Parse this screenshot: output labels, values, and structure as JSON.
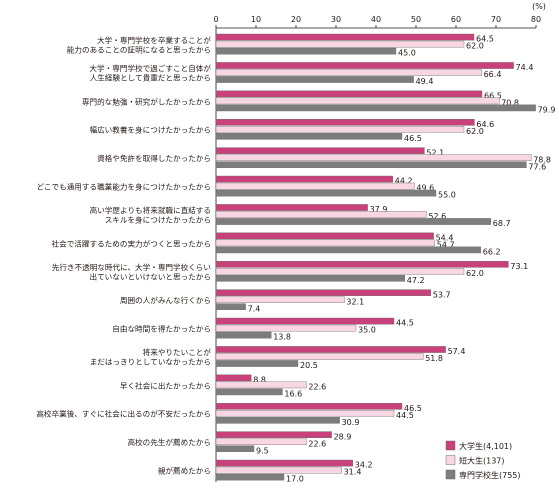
{
  "chart_data": {
    "type": "bar",
    "orientation": "horizontal",
    "unit_label": "(%)",
    "xlim": [
      0,
      80
    ],
    "xticks": [
      0,
      10,
      20,
      30,
      40,
      50,
      60,
      70,
      80
    ],
    "grid": false,
    "legend_position": "bottom-right",
    "categories": [
      [
        "大学・専門学校を卒業することが",
        "能力のあることの証明になると思ったから"
      ],
      [
        "大学・専門学校で過ごすこと自体が",
        "人生経験として貴重だと思ったから"
      ],
      [
        "専門的な勉強・研究がしたかったから"
      ],
      [
        "幅広い教養を身につけたかったから"
      ],
      [
        "資格や免許を取得したかったから"
      ],
      [
        "どこでも通用する職業能力を身につけたかったから"
      ],
      [
        "高い学歴よりも将来就職に直結する",
        "スキルを身につけたかったから"
      ],
      [
        "社会で活躍するための実力がつくと思ったから"
      ],
      [
        "先行き不透明な時代に、大学・専門学校くらい",
        "出ていないといけないと思ったから"
      ],
      [
        "周囲の人がみんな行くから"
      ],
      [
        "自由な時間を得たかったから"
      ],
      [
        "将来やりたいことが",
        "まだはっきりとしていなかったから"
      ],
      [
        "早く社会に出たかったから"
      ],
      [
        "高校卒業後、すぐに社会に出るのが不安だったから"
      ],
      [
        "高校の先生が薦めたから"
      ],
      [
        "親が薦めたから"
      ]
    ],
    "series": [
      {
        "name": "大学生(4,101)",
        "color": "#c8417b",
        "values": [
          64.5,
          74.4,
          66.5,
          64.6,
          52.1,
          44.2,
          37.9,
          54.4,
          73.1,
          53.7,
          44.5,
          57.4,
          8.8,
          46.5,
          28.9,
          34.2
        ]
      },
      {
        "name": "短大生(137)",
        "color": "#f8d6e2",
        "values": [
          62.0,
          66.4,
          70.8,
          62.0,
          78.8,
          49.6,
          52.6,
          54.7,
          62.0,
          32.1,
          35.0,
          51.8,
          22.6,
          44.5,
          22.6,
          31.4
        ]
      },
      {
        "name": "専門学校生(755)",
        "color": "#7d7d7d",
        "values": [
          45.0,
          49.4,
          79.9,
          46.5,
          77.6,
          55.0,
          68.7,
          66.2,
          47.2,
          7.4,
          13.8,
          20.5,
          16.6,
          30.9,
          9.5,
          17.0
        ]
      }
    ]
  }
}
